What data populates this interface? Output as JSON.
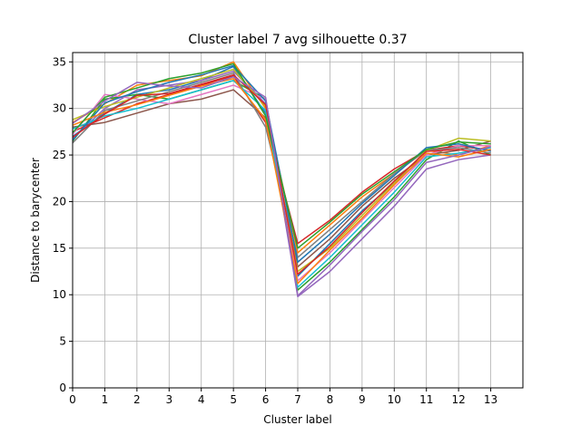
{
  "chart_data": {
    "type": "line",
    "title": "Cluster label 7 avg silhouette 0.37",
    "xlabel": "Cluster label",
    "ylabel": "Distance to barycenter",
    "xlim": [
      0,
      14
    ],
    "ylim": [
      0,
      36
    ],
    "grid": true,
    "x_ticks": [
      0,
      1,
      2,
      3,
      4,
      5,
      6,
      7,
      8,
      9,
      10,
      11,
      12,
      13
    ],
    "y_ticks": [
      0,
      5,
      10,
      15,
      20,
      25,
      30,
      35
    ],
    "x": [
      0,
      1,
      2,
      3,
      4,
      5,
      6,
      7,
      8,
      9,
      10,
      11,
      12,
      13
    ],
    "palette": [
      "#1f77b4",
      "#ff7f0e",
      "#2ca02c",
      "#d62728",
      "#9467bd",
      "#8c564b",
      "#e377c2",
      "#7f7f7f",
      "#bcbd22",
      "#17becf"
    ],
    "series": [
      {
        "values": [
          27.0,
          29.5,
          31.5,
          32.0,
          33.0,
          34.5,
          29.5,
          12.0,
          15.5,
          19.0,
          22.0,
          25.0,
          26.0,
          25.5
        ]
      },
      {
        "values": [
          28.5,
          30.5,
          32.5,
          33.0,
          33.5,
          35.0,
          30.0,
          14.5,
          17.5,
          20.5,
          23.0,
          25.5,
          25.0,
          26.0
        ]
      },
      {
        "values": [
          26.5,
          31.0,
          31.5,
          31.0,
          32.0,
          33.0,
          31.0,
          10.5,
          13.5,
          17.0,
          20.5,
          24.5,
          26.5,
          25.0
        ]
      },
      {
        "values": [
          27.5,
          29.0,
          30.5,
          31.5,
          32.5,
          33.5,
          28.5,
          15.5,
          18.0,
          21.0,
          23.5,
          25.5,
          26.0,
          25.5
        ]
      },
      {
        "values": [
          26.8,
          30.0,
          32.0,
          32.5,
          33.0,
          34.0,
          30.5,
          9.8,
          12.5,
          16.0,
          19.5,
          23.5,
          24.5,
          25.0
        ]
      },
      {
        "values": [
          28.0,
          28.5,
          29.5,
          30.5,
          31.0,
          32.0,
          29.0,
          13.0,
          16.0,
          19.5,
          22.5,
          25.0,
          25.5,
          26.5
        ]
      },
      {
        "values": [
          27.2,
          31.5,
          31.0,
          30.5,
          31.5,
          32.5,
          31.0,
          11.5,
          14.5,
          18.0,
          21.5,
          25.0,
          26.0,
          26.0
        ]
      },
      {
        "values": [
          26.3,
          29.8,
          30.8,
          31.8,
          32.8,
          33.8,
          28.0,
          14.0,
          17.0,
          20.0,
          23.0,
          25.5,
          25.8,
          25.2
        ]
      },
      {
        "values": [
          28.8,
          30.2,
          31.2,
          32.2,
          33.2,
          34.2,
          30.2,
          12.5,
          15.0,
          18.5,
          22.0,
          25.5,
          26.8,
          26.5
        ]
      },
      {
        "values": [
          27.8,
          29.2,
          30.0,
          31.0,
          32.0,
          33.0,
          29.8,
          10.8,
          14.0,
          17.5,
          21.0,
          24.8,
          25.2,
          25.8
        ]
      },
      {
        "values": [
          26.6,
          30.6,
          31.8,
          32.8,
          33.6,
          34.6,
          30.8,
          13.5,
          16.5,
          19.8,
          22.8,
          25.8,
          26.2,
          25.4
        ]
      },
      {
        "values": [
          28.2,
          29.6,
          30.4,
          31.4,
          32.4,
          33.2,
          28.8,
          11.2,
          14.8,
          18.2,
          21.8,
          25.2,
          24.8,
          25.6
        ]
      },
      {
        "values": [
          27.4,
          31.2,
          32.2,
          33.2,
          33.8,
          34.8,
          29.2,
          15.0,
          17.8,
          20.8,
          23.2,
          25.6,
          26.4,
          26.2
        ]
      },
      {
        "values": [
          26.9,
          29.4,
          31.4,
          31.6,
          32.6,
          33.6,
          30.4,
          12.2,
          15.2,
          18.8,
          22.2,
          25.4,
          25.6,
          25.0
        ]
      },
      {
        "values": [
          28.4,
          30.8,
          32.8,
          32.4,
          32.2,
          33.4,
          31.2,
          9.9,
          13.2,
          16.8,
          20.2,
          24.2,
          25.0,
          25.9
        ]
      }
    ]
  }
}
